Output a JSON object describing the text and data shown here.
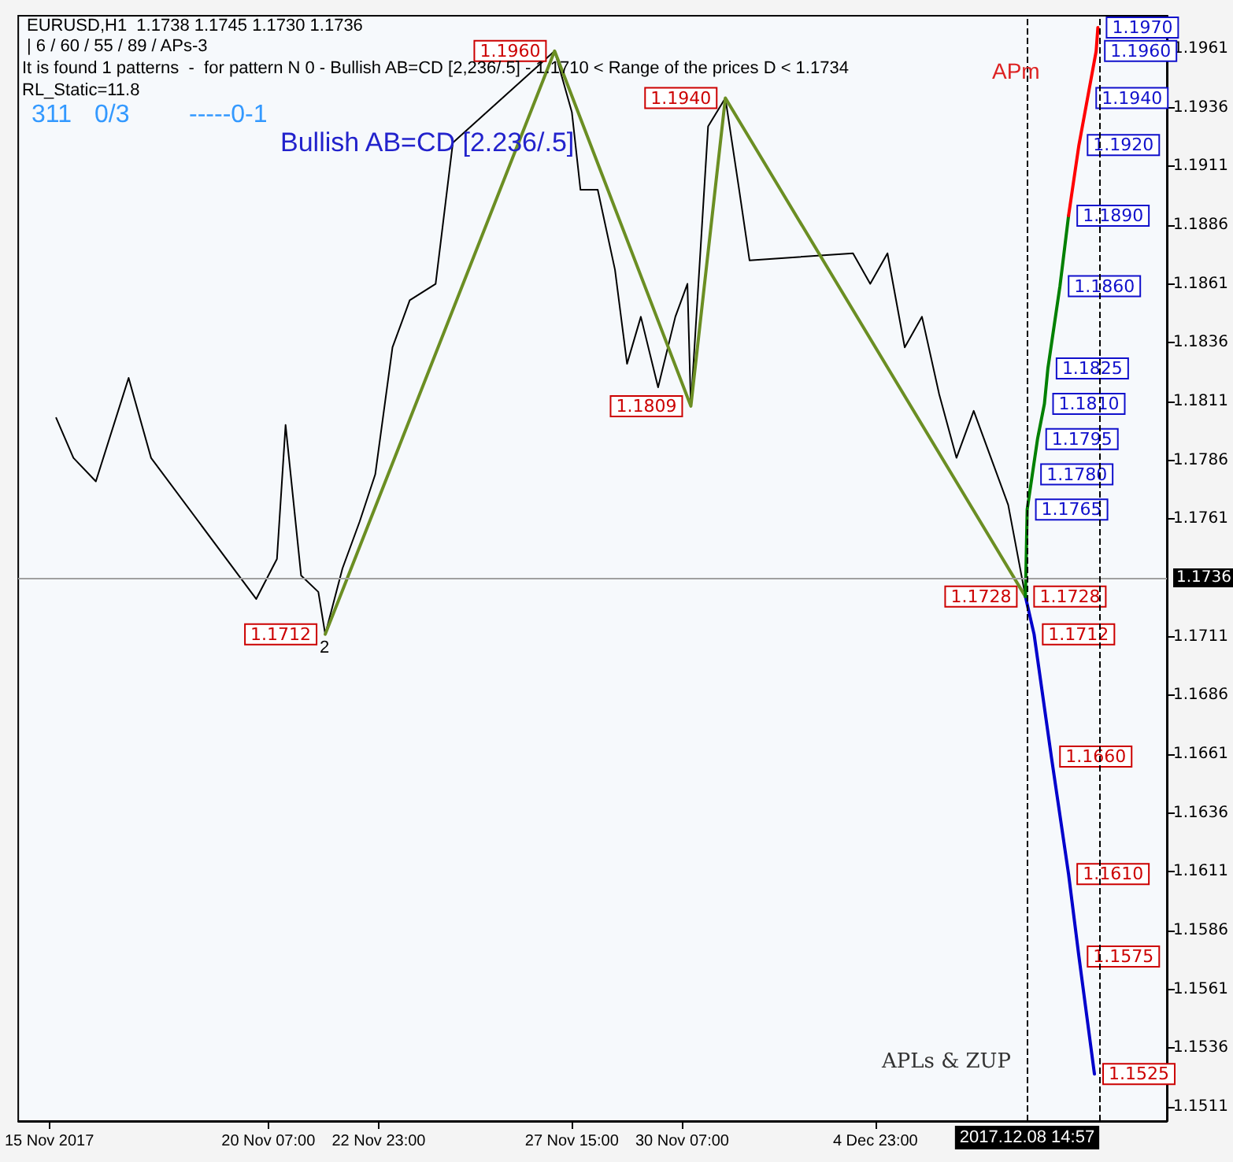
{
  "chart_data": {
    "type": "line",
    "title": "EURUSD,H1  1.1738 1.1745 1.1730 1.1736",
    "subtitle": "| 6 / 60 / 55 / 89 / APs-3",
    "annotations": [
      "It is found 1 patterns  -  for pattern N 0 - Bullish AB=CD [2,236/.5] - 1.1710 < Range of the prices D < 1.1734",
      "RL_Static=11.8",
      "311",
      "0/3",
      "-----0-1",
      "Bullish AB=CD [2.236/.5]",
      "APm",
      "APLs & ZUP",
      "2"
    ],
    "xlim": [
      "2017-11-14T06:00",
      "2017-12-12T00:00"
    ],
    "ylim": [
      1.1505,
      1.1975
    ],
    "xticks": [
      {
        "value": "2017-11-15T00:00",
        "label": "15 Nov 2017"
      },
      {
        "value": "2017-11-20T07:00",
        "label": "20 Nov 07:00"
      },
      {
        "value": "2017-11-22T23:00",
        "label": "22 Nov 23:00"
      },
      {
        "value": "2017-11-27T15:00",
        "label": "27 Nov 15:00"
      },
      {
        "value": "2017-11-30T07:00",
        "label": "30 Nov 07:00"
      },
      {
        "value": "2017-12-04T23:00",
        "label": "4 Dec 23:00"
      }
    ],
    "yticks": [
      1.1511,
      1.1536,
      1.1561,
      1.1586,
      1.1611,
      1.1636,
      1.1661,
      1.1686,
      1.1711,
      1.1761,
      1.1786,
      1.1811,
      1.1836,
      1.1861,
      1.1886,
      1.1911,
      1.1936,
      1.1961
    ],
    "marker": "none",
    "line_style": "solid",
    "ref_lines": [
      {
        "axis": "y",
        "value": 1.1736,
        "label": "1.1736",
        "color": "#a0a0a0"
      },
      {
        "axis": "x",
        "value": "2017-12-08T14:57",
        "label": "2017.12.08 14:57",
        "color": "#000000",
        "line_style": "dashed"
      },
      {
        "axis": "x",
        "value": "2017-12-10T09:00",
        "color": "#000000",
        "line_style": "dashed"
      }
    ],
    "series": [
      {
        "color": "#000000",
        "x": [
          "2017-11-15T04:00",
          "2017-11-15T14:00",
          "2017-11-16T03:00",
          "2017-11-16T22:00",
          "2017-11-17T11:00",
          "2017-11-20T00:00",
          "2017-11-20T12:00",
          "2017-11-20T17:00",
          "2017-11-21T02:00",
          "2017-11-21T12:00",
          "2017-11-21T16:00",
          "2017-11-22T02:00",
          "2017-11-22T12:00",
          "2017-11-22T21:00",
          "2017-11-23T07:00",
          "2017-11-23T17:00",
          "2017-11-24T08:00",
          "2017-11-24T18:00",
          "2017-11-27T05:00",
          "2017-11-27T15:00",
          "2017-11-27T20:00",
          "2017-11-28T06:00",
          "2017-11-28T16:00",
          "2017-11-28T23:00",
          "2017-11-29T07:00",
          "2017-11-29T17:00",
          "2017-11-30T03:00",
          "2017-11-30T10:00",
          "2017-11-30T12:00",
          "2017-11-30T22:00",
          "2017-12-01T08:00",
          "2017-12-01T16:00",
          "2017-12-01T22:00",
          "2017-12-04T10:00",
          "2017-12-04T20:00",
          "2017-12-05T06:00",
          "2017-12-05T16:00",
          "2017-12-06T02:00",
          "2017-12-06T12:00",
          "2017-12-06T22:00",
          "2017-12-07T08:00",
          "2017-12-07T18:00",
          "2017-12-08T04:00",
          "2017-12-08T14:00"
        ],
        "values": [
          1.1804,
          1.1787,
          1.1777,
          1.1821,
          1.1787,
          1.1727,
          1.1744,
          1.1801,
          1.1737,
          1.173,
          1.1712,
          1.174,
          1.176,
          1.178,
          1.1834,
          1.1854,
          1.1861,
          1.1921,
          1.196,
          1.1934,
          1.1901,
          1.1901,
          1.1867,
          1.1827,
          1.1847,
          1.1817,
          1.1847,
          1.1861,
          1.1809,
          1.1928,
          1.194,
          1.1901,
          1.1871,
          1.1874,
          1.1861,
          1.1874,
          1.1834,
          1.1847,
          1.1814,
          1.1787,
          1.1807,
          1.1787,
          1.1767,
          1.1728
        ],
        "value_labels": [
          null,
          null,
          null,
          null,
          null,
          null,
          null,
          null,
          null,
          null,
          "1.1712",
          null,
          null,
          null,
          null,
          null,
          null,
          null,
          "1.1960",
          null,
          null,
          null,
          null,
          null,
          null,
          null,
          null,
          null,
          "1.1809",
          null,
          "1.1940",
          null,
          null,
          null,
          null,
          null,
          null,
          null,
          null,
          null,
          null,
          null,
          null,
          "1.1728"
        ]
      },
      {
        "color": "#6b8e23",
        "x": [
          "2017-11-21T16:00",
          "2017-11-27T05:00",
          "2017-11-30T12:00",
          "2017-12-01T08:00",
          "2017-12-08T14:00"
        ],
        "values": [
          1.1712,
          1.196,
          1.1809,
          1.194,
          1.1728
        ]
      },
      {
        "color": "#0000cc",
        "x": [
          "2017-12-08T14:00",
          "2017-12-08T19:00",
          "2017-12-09T05:00",
          "2017-12-09T15:00",
          "2017-12-09T21:00",
          "2017-12-10T06:00"
        ],
        "values": [
          1.1728,
          1.1712,
          1.166,
          1.161,
          1.1575,
          1.1525
        ],
        "value_labels": [
          "1.1728",
          "1.1712",
          "1.1660",
          "1.1610",
          "1.1575",
          "1.1525"
        ]
      },
      {
        "color": "#008000",
        "x": [
          "2017-12-08T14:00",
          "2017-12-08T15:00",
          "2017-12-08T18:00",
          "2017-12-08T21:00",
          "2017-12-09T01:00",
          "2017-12-09T03:00",
          "2017-12-09T10:00",
          "2017-12-09T15:00"
        ],
        "values": [
          1.1728,
          1.1765,
          1.178,
          1.1795,
          1.181,
          1.1825,
          1.186,
          1.189
        ],
        "value_labels": [
          null,
          "1.1765",
          "1.1780",
          "1.1795",
          "1.1810",
          "1.1825",
          "1.1860",
          "1.1890"
        ]
      },
      {
        "color": "#ff0000",
        "x": [
          "2017-12-09T15:00",
          "2017-12-09T21:00",
          "2017-12-10T02:00",
          "2017-12-10T07:00",
          "2017-12-10T08:00"
        ],
        "values": [
          1.189,
          1.192,
          1.194,
          1.196,
          1.197
        ],
        "value_labels": [
          null,
          "1.1920",
          "1.1940",
          "1.1960",
          "1.1970"
        ]
      }
    ]
  }
}
